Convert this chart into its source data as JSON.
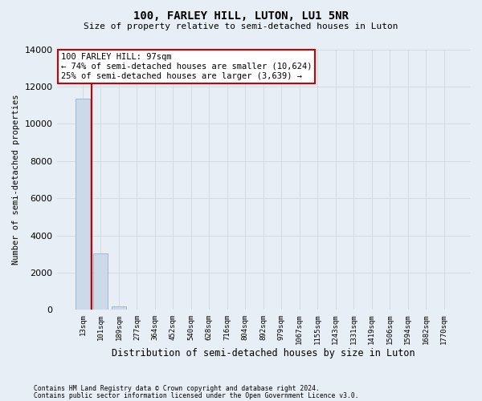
{
  "title": "100, FARLEY HILL, LUTON, LU1 5NR",
  "subtitle": "Size of property relative to semi-detached houses in Luton",
  "xlabel": "Distribution of semi-detached houses by size in Luton",
  "ylabel": "Number of semi-detached properties",
  "annotation_title": "100 FARLEY HILL: 97sqm",
  "annotation_line1": "← 74% of semi-detached houses are smaller (10,624)",
  "annotation_line2": "25% of semi-detached houses are larger (3,639) →",
  "footer_line1": "Contains HM Land Registry data © Crown copyright and database right 2024.",
  "footer_line2": "Contains public sector information licensed under the Open Government Licence v3.0.",
  "categories": [
    "13sqm",
    "101sqm",
    "189sqm",
    "277sqm",
    "364sqm",
    "452sqm",
    "540sqm",
    "628sqm",
    "716sqm",
    "804sqm",
    "892sqm",
    "979sqm",
    "1067sqm",
    "1155sqm",
    "1243sqm",
    "1331sqm",
    "1419sqm",
    "1506sqm",
    "1594sqm",
    "1682sqm",
    "1770sqm"
  ],
  "values": [
    11350,
    3050,
    200,
    0,
    0,
    0,
    0,
    0,
    0,
    0,
    0,
    0,
    0,
    0,
    0,
    0,
    0,
    0,
    0,
    0,
    0
  ],
  "bar_color": "#ccd9e8",
  "bar_edge_color": "#a0b8cc",
  "vline_color": "#cc0000",
  "annotation_box_color": "#cc0000",
  "grid_color": "#d0d8e0",
  "background_color": "#e8eef5",
  "ylim": [
    0,
    14000
  ],
  "yticks": [
    0,
    2000,
    4000,
    6000,
    8000,
    10000,
    12000,
    14000
  ]
}
